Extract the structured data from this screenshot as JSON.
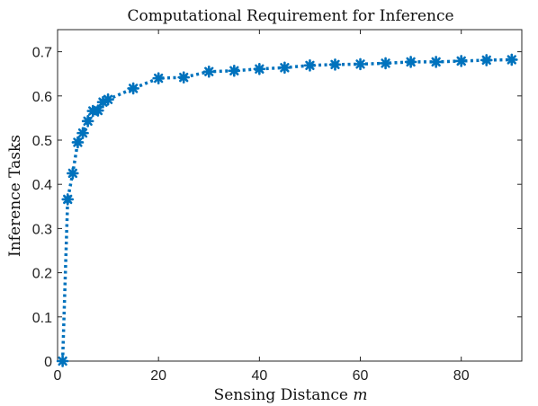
{
  "chart_data": {
    "type": "line",
    "title": "Computational Requirement for Inference",
    "xlabel": "Sensing Distance m",
    "xlabel_main": "Sensing Distance ",
    "xlabel_var": "m",
    "ylabel": "Inference Tasks",
    "xlim": [
      0,
      92
    ],
    "ylim": [
      0,
      0.75
    ],
    "xticks": [
      0,
      20,
      40,
      60,
      80
    ],
    "xtick_labels": [
      "0",
      "20",
      "40",
      "60",
      "80"
    ],
    "yticks": [
      0,
      0.1,
      0.2,
      0.3,
      0.4,
      0.5,
      0.6,
      0.7
    ],
    "ytick_labels": [
      "0",
      "0.1",
      "0.2",
      "0.3",
      "0.4",
      "0.5",
      "0.6",
      "0.7"
    ],
    "grid": false,
    "legend": "none",
    "series": [
      {
        "color": "#0072BD",
        "line_style": "dotted",
        "marker": "asterisk",
        "x": [
          1,
          2,
          3,
          4,
          5,
          6,
          7,
          8,
          9,
          10,
          15,
          20,
          25,
          30,
          35,
          40,
          45,
          50,
          55,
          60,
          65,
          70,
          75,
          80,
          85,
          90
        ],
        "y": [
          0.0,
          0.366,
          0.425,
          0.495,
          0.516,
          0.543,
          0.566,
          0.567,
          0.586,
          0.592,
          0.617,
          0.64,
          0.642,
          0.655,
          0.657,
          0.661,
          0.664,
          0.669,
          0.671,
          0.672,
          0.674,
          0.677,
          0.677,
          0.679,
          0.681,
          0.682
        ]
      }
    ]
  }
}
